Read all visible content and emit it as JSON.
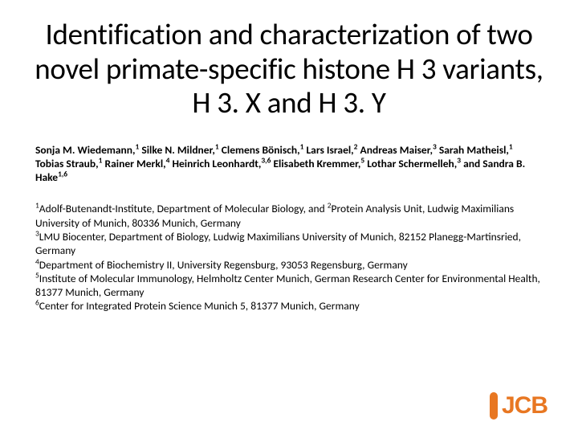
{
  "title": "Identification and characterization of two novel primate-specific histone H 3 variants, H 3. X and H 3. Y",
  "authors_html": "Sonja M. Wiedemann,<sup>1</sup> Silke N. Mildner,<sup>1</sup> Clemens Bönisch,<sup>1</sup> Lars Israel,<sup>2</sup> Andreas Maiser,<sup>3</sup> Sarah Matheisl,<sup>1</sup> Tobias Straub,<sup>1</sup> Rainer Merkl,<sup>4</sup> Heinrich Leonhardt,<sup>3,6</sup> Elisabeth Kremmer,<sup>5</sup> Lothar Schermelleh,<sup>3</sup> and Sandra B. Hake<sup>1,6</sup>",
  "affiliations_html": "<sup>1</sup>Adolf-Butenandt-Institute, Department of Molecular Biology, and <sup>2</sup>Protein Analysis Unit, Ludwig Maximilians University of Munich, 80336 Munich, Germany<br><sup>3</sup>LMU Biocenter, Department of Biology, Ludwig Maximilians University of Munich, 82152 Planegg-Martinsried, Germany<br><sup>4</sup>Department of Biochemistry II, University Regensburg, 93053 Regensburg, Germany<br><sup>5</sup>Institute of Molecular Immunology, Helmholtz Center Munich, German Research Center for Environmental Health, 81377 Munich, Germany<br><sup>6</sup>Center for Integrated Protein Science Munich 5, 81377 Munich, Germany",
  "logo": {
    "bar_color": "#e87722",
    "text_color": "#e87722",
    "text": "JCB"
  },
  "colors": {
    "background": "#ffffff",
    "text": "#000000"
  },
  "typography": {
    "title_fontsize": 37,
    "authors_fontsize": 13.5,
    "affiliations_fontsize": 13.5,
    "logo_fontsize": 30
  }
}
